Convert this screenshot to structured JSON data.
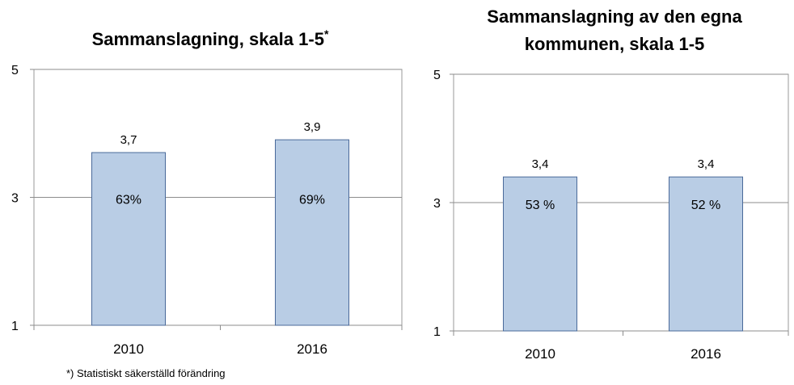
{
  "chart_data": [
    {
      "type": "bar",
      "title": "Sammanslagning, skala 1-5",
      "title_suffix": "*",
      "categories": [
        "2010",
        "2016"
      ],
      "values": [
        3.7,
        3.9
      ],
      "data_labels": [
        "3,7",
        "3,9"
      ],
      "inner_labels": [
        "63%",
        "69%"
      ],
      "ylim": [
        1,
        5
      ],
      "yticks": [
        1,
        3,
        5
      ],
      "grid": true,
      "bar_color": "#b9cde5",
      "bar_edge_color": "#4a6a9a"
    },
    {
      "type": "bar",
      "title": "Sammanslagning av den egna kommunen, skala 1-5",
      "title_lines": [
        "Sammanslagning av den egna",
        "kommunen, skala 1-5"
      ],
      "categories": [
        "2010",
        "2016"
      ],
      "values": [
        3.4,
        3.4
      ],
      "data_labels": [
        "3,4",
        "3,4"
      ],
      "inner_labels": [
        "53 %",
        "52 %"
      ],
      "ylim": [
        1,
        5
      ],
      "yticks": [
        1,
        3,
        5
      ],
      "grid": true,
      "bar_color": "#b9cde5",
      "bar_edge_color": "#4a6a9a"
    }
  ],
  "footnote": "*) Statistiskt säkerställd förändring"
}
